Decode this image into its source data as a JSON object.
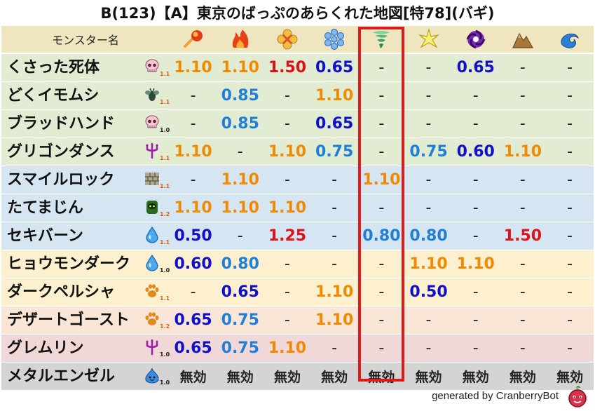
{
  "title": "B(123)【A】東京のばっぷのあらくれた地図[特78](バギ)",
  "header_label": "モンスター名",
  "elements": [
    "mera-icon",
    "gira-icon",
    "io-icon",
    "hyado-icon",
    "bagi-icon",
    "dein-icon",
    "doruma-icon",
    "jibaria-icon",
    "aqua-icon"
  ],
  "highlight_column": "バギ",
  "colors": {
    "green_row": "#e2ecd2",
    "blue_row": "#d6e5f2",
    "yellow_row": "#fcf0cf",
    "peach_row": "#f9e6d6",
    "pink_row": "#f1d8d8",
    "gray_row": "#d4d4d4",
    "weak": "#f08a00",
    "very_weak": "#e0101a",
    "resist": "#1010c8",
    "mild_resist": "#1f7fd8",
    "highlight_border": "#dc1c1c"
  },
  "rows": [
    {
      "name": "くさった死体",
      "type": "skull-icon",
      "type_num": "1.1",
      "values": [
        "1.10",
        "1.10",
        "1.50",
        "0.65",
        "-",
        "-",
        "0.65",
        "-",
        "-"
      ]
    },
    {
      "name": "どくイモムシ",
      "type": "bug-icon",
      "type_num": "1.1",
      "values": [
        "-",
        "0.85",
        "-",
        "1.10",
        "-",
        "-",
        "-",
        "-",
        "-"
      ]
    },
    {
      "name": "ブラッドハンド",
      "type": "skull-icon",
      "type_num": "1.0",
      "values": [
        "-",
        "0.85",
        "-",
        "0.65",
        "-",
        "-",
        "-",
        "-",
        "-"
      ]
    },
    {
      "name": "グリゴンダンス",
      "type": "trident-icon",
      "type_num": "1.1",
      "values": [
        "1.10",
        "-",
        "1.10",
        "0.75",
        "-",
        "0.75",
        "0.60",
        "1.10",
        "-"
      ]
    },
    {
      "name": "スマイルロック",
      "type": "brick-icon",
      "type_num": "1.1",
      "values": [
        "-",
        "1.10",
        "-",
        "-",
        "1.10",
        "-",
        "-",
        "-",
        "-"
      ]
    },
    {
      "name": "たてまじん",
      "type": "golem-icon",
      "type_num": "1.2",
      "values": [
        "1.10",
        "1.10",
        "1.10",
        "-",
        "-",
        "-",
        "-",
        "-",
        "-"
      ]
    },
    {
      "name": "セキバーン",
      "type": "water-drop-icon",
      "type_num": "1.1",
      "values": [
        "0.50",
        "-",
        "1.25",
        "-",
        "0.80",
        "0.80",
        "-",
        "1.50",
        "-"
      ]
    },
    {
      "name": "ヒョウモンダーク",
      "type": "water-drop-icon",
      "type_num": "1.0",
      "values": [
        "0.60",
        "0.80",
        "-",
        "-",
        "-",
        "1.10",
        "1.10",
        "-",
        "-"
      ]
    },
    {
      "name": "ダークペルシャ",
      "type": "paw-icon",
      "type_num": "1.1",
      "values": [
        "-",
        "0.65",
        "-",
        "1.10",
        "-",
        "0.50",
        "-",
        "-",
        "-"
      ]
    },
    {
      "name": "デザートゴースト",
      "type": "paw-icon",
      "type_num": "1.2",
      "values": [
        "0.65",
        "0.75",
        "-",
        "1.10",
        "-",
        "-",
        "-",
        "-",
        "-"
      ]
    },
    {
      "name": "グレムリン",
      "type": "trident-icon",
      "type_num": "1.0",
      "values": [
        "0.65",
        "0.75",
        "1.10",
        "-",
        "-",
        "-",
        "-",
        "-",
        "-"
      ]
    },
    {
      "name": "メタルエンゼル",
      "type": "slime-icon",
      "type_num": "1.0",
      "values": [
        "無効",
        "無効",
        "無効",
        "無効",
        "無効",
        "無効",
        "無効",
        "無効",
        "無効"
      ]
    }
  ],
  "row_color_keys": [
    "green_row",
    "green_row",
    "green_row",
    "green_row",
    "blue_row",
    "blue_row",
    "blue_row",
    "yellow_row",
    "yellow_row",
    "peach_row",
    "pink_row",
    "gray_row"
  ],
  "footer": "generated by CranberryBot"
}
